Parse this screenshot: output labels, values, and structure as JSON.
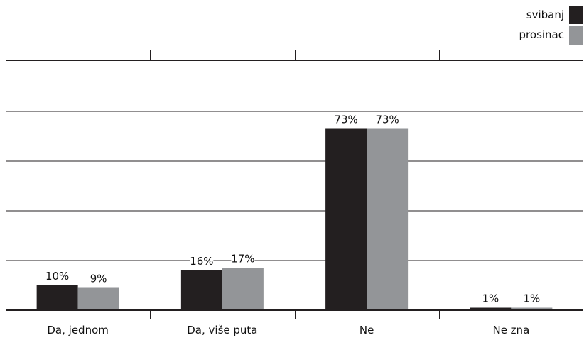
{
  "chart_data": {
    "type": "bar",
    "title": "",
    "xlabel": "",
    "ylabel": "",
    "ylim": [
      0,
      100
    ],
    "grid": true,
    "legend_position": "top-right",
    "categories": [
      "Da, jednom",
      "Da, više puta",
      "Ne",
      "Ne zna"
    ],
    "series": [
      {
        "name": "svibanj",
        "color": "#231f20",
        "values": [
          10,
          16,
          73,
          1
        ],
        "labels": [
          "10%",
          "16%",
          "73%",
          "1%"
        ]
      },
      {
        "name": "prosinac",
        "color": "#939598",
        "values": [
          9,
          17,
          73,
          1
        ],
        "labels": [
          "9%",
          "17%",
          "73%",
          "1%"
        ]
      }
    ]
  }
}
